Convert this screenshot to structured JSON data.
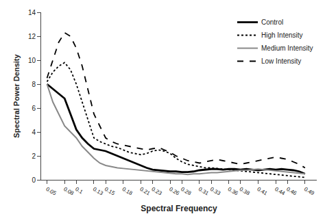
{
  "chart_data": {
    "type": "line",
    "xlabel": "Spectral Frequency",
    "ylabel": "Spectral Power Density",
    "x": [
      0.05,
      0.06,
      0.07,
      0.08,
      0.09,
      0.1,
      0.11,
      0.12,
      0.13,
      0.14,
      0.15,
      0.16,
      0.17,
      0.18,
      0.19,
      0.2,
      0.21,
      0.22,
      0.23,
      0.24,
      0.25,
      0.26,
      0.27,
      0.28,
      0.29,
      0.3,
      0.31,
      0.32,
      0.33,
      0.34,
      0.35,
      0.36,
      0.37,
      0.38,
      0.39,
      0.4,
      0.41,
      0.42,
      0.43,
      0.44,
      0.45,
      0.46,
      0.47,
      0.48,
      0.49
    ],
    "series": [
      {
        "name": "Control",
        "color": "#000000",
        "line_style": "solid",
        "values": [
          8.0,
          7.6,
          7.2,
          6.8,
          5.5,
          4.2,
          3.5,
          3.0,
          2.6,
          2.5,
          2.4,
          2.2,
          2.0,
          1.8,
          1.6,
          1.4,
          1.2,
          1.0,
          0.85,
          0.8,
          0.75,
          0.7,
          0.7,
          0.65,
          0.65,
          0.7,
          0.8,
          0.85,
          0.9,
          0.9,
          0.85,
          0.9,
          0.9,
          0.85,
          0.9,
          0.85,
          0.8,
          0.85,
          0.9,
          0.85,
          0.9,
          0.85,
          0.8,
          0.7,
          0.5
        ]
      },
      {
        "name": "High Intensity",
        "color": "#000000",
        "line_style": "dotted",
        "values": [
          8.2,
          9.0,
          9.5,
          9.8,
          9.2,
          8.0,
          6.5,
          5.0,
          3.5,
          3.2,
          3.0,
          2.8,
          2.7,
          2.5,
          2.3,
          2.2,
          2.1,
          2.2,
          2.4,
          2.5,
          2.4,
          2.2,
          1.8,
          1.5,
          1.3,
          1.2,
          1.1,
          1.0,
          1.0,
          0.95,
          0.9,
          0.85,
          0.8,
          0.75,
          0.7,
          0.65,
          0.6,
          0.55,
          0.5,
          0.45,
          0.4,
          0.35,
          0.3,
          0.25,
          0.2
        ]
      },
      {
        "name": "Medium Intensity",
        "color": "#888888",
        "line_style": "solid",
        "values": [
          8.0,
          6.5,
          5.5,
          4.5,
          4.0,
          3.5,
          2.8,
          2.3,
          1.8,
          1.4,
          1.2,
          1.1,
          1.0,
          0.95,
          0.9,
          0.85,
          0.8,
          0.75,
          0.7,
          0.65,
          0.6,
          0.55,
          0.5,
          0.5,
          0.45,
          0.5,
          0.5,
          0.55,
          0.6,
          0.6,
          0.65,
          0.7,
          0.75,
          0.8,
          0.8,
          0.85,
          0.9,
          0.85,
          0.8,
          0.75,
          0.7,
          0.65,
          0.6,
          0.55,
          0.5
        ]
      },
      {
        "name": "Low Intensity",
        "color": "#000000",
        "line_style": "dashed",
        "values": [
          8.5,
          10.0,
          11.5,
          12.3,
          12.0,
          11.0,
          9.5,
          7.5,
          5.5,
          4.5,
          3.5,
          3.2,
          3.0,
          2.9,
          2.8,
          2.7,
          2.6,
          2.5,
          2.6,
          2.7,
          2.5,
          2.3,
          2.0,
          1.8,
          1.6,
          1.5,
          1.4,
          1.5,
          1.6,
          1.7,
          1.6,
          1.5,
          1.4,
          1.3,
          1.4,
          1.5,
          1.6,
          1.7,
          1.8,
          1.9,
          1.8,
          1.7,
          1.5,
          1.3,
          1.0
        ]
      }
    ],
    "xlim": [
      0.04,
      0.51
    ],
    "xticks": [
      0.05,
      0.08,
      0.1,
      0.13,
      0.15,
      0.18,
      0.21,
      0.23,
      0.26,
      0.28,
      0.31,
      0.33,
      0.36,
      0.38,
      0.41,
      0.44,
      0.46,
      0.49
    ],
    "ylim": [
      0,
      14
    ],
    "yticks": [
      0,
      2,
      4,
      6,
      8,
      10,
      12,
      14
    ],
    "legend": "upper right",
    "grid": false
  }
}
